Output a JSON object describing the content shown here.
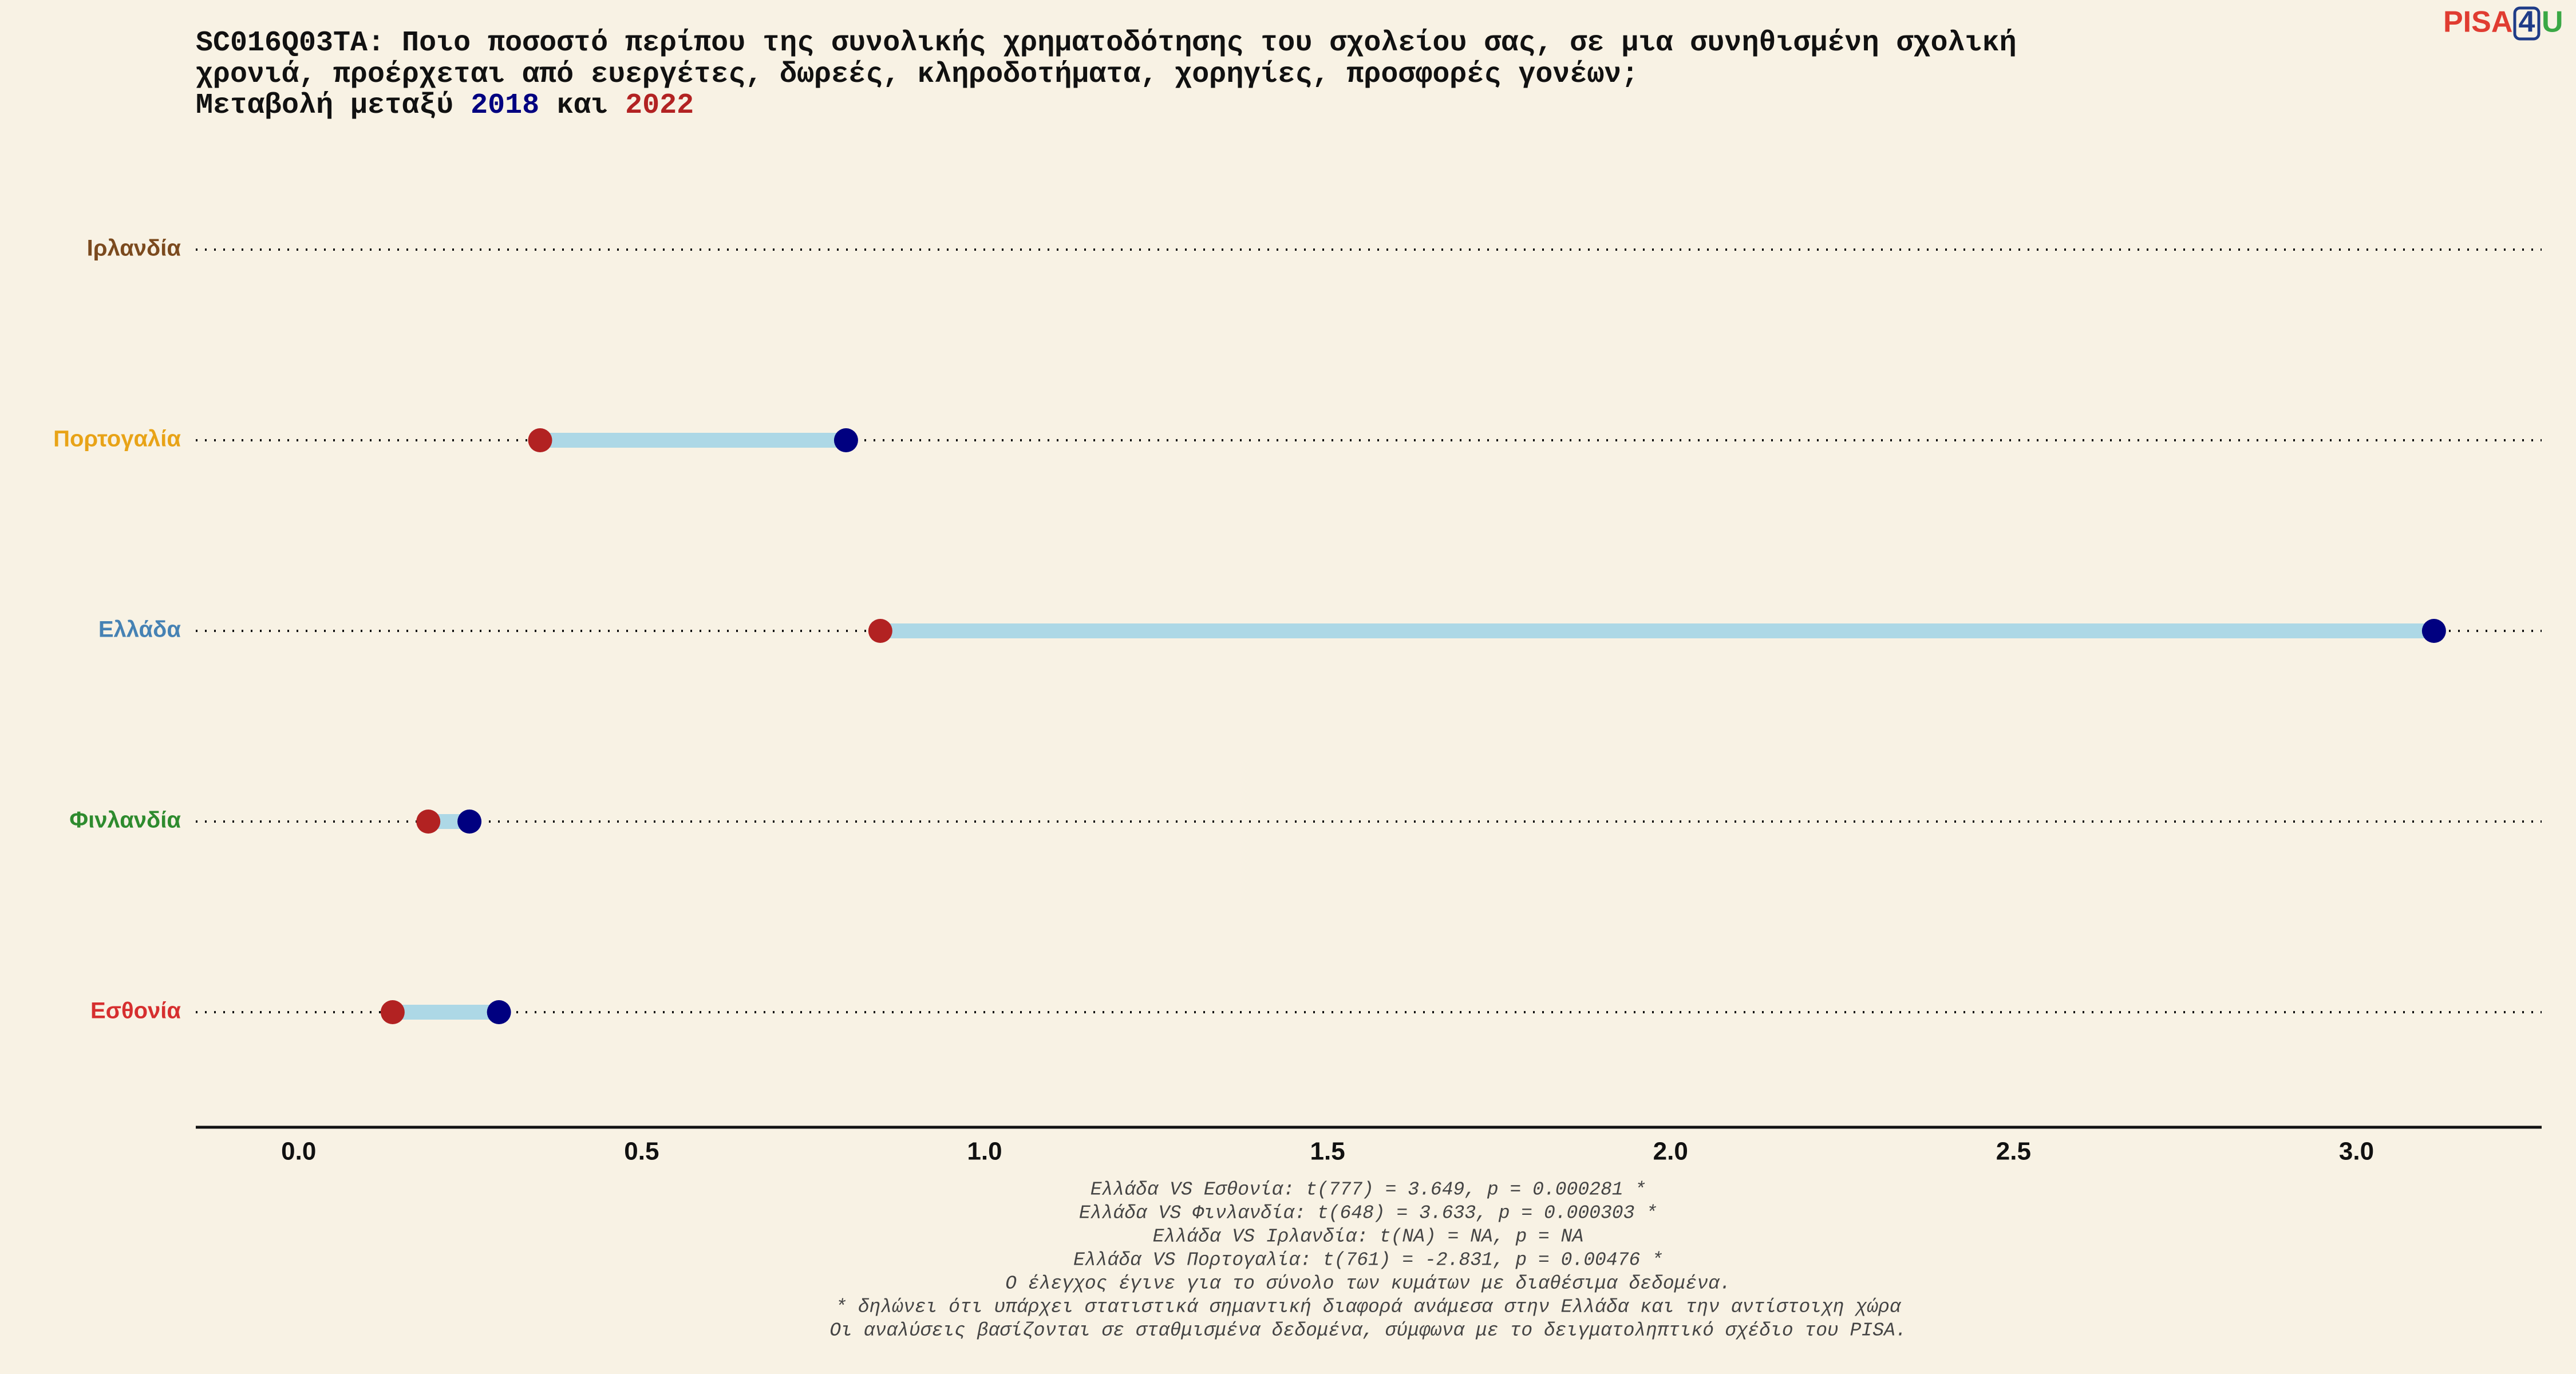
{
  "chart_data": {
    "type": "dumbbell",
    "title_lines": [
      "SC016Q03TA: Ποιο ποσοστό περίπου της συνολικής χρηματοδότησης του σχολείου σας, σε μια συνηθισμένη σχολική",
      "χρονιά, προέρχεται από ευεργέτες, δωρεές, κληροδοτήματα, χορηγίες, προσφορές γονέων;"
    ],
    "subtitle_parts": {
      "prefix": "Μεταβολή μεταξύ",
      "joiner": "και"
    },
    "categories": [
      "Ιρλανδία",
      "Πορτογαλία",
      "Ελλάδα",
      "Φινλανδία",
      "Εσθονία"
    ],
    "category_colors": [
      "#7b4a1e",
      "#e8a317",
      "#4682b4",
      "#2e8b2e",
      "#d62f2f"
    ],
    "series": [
      {
        "name": "2018",
        "color": "#000080",
        "values": [
          null,
          0.798,
          3.113,
          0.249,
          0.292
        ]
      },
      {
        "name": "2022",
        "color": "#b22222",
        "values": [
          null,
          0.352,
          0.848,
          0.189,
          0.137
        ]
      }
    ],
    "segment_color": "#add8e6",
    "xlim": [
      -0.15,
      3.27
    ],
    "xticks": [
      {
        "value": 0,
        "label": "0.0"
      },
      0.5,
      {
        "value": 1,
        "label": "1.0"
      },
      1.5,
      {
        "value": 2,
        "label": "2.0"
      },
      2.5,
      {
        "value": 3,
        "label": "3.0"
      }
    ],
    "notes": [
      "Ελλάδα VS Εσθονία: t(777) = 3.649, p = 0.000281 *",
      "Ελλάδα VS Φινλανδία: t(648) = 3.633, p = 0.000303 *",
      "Ελλάδα VS Ιρλανδία: t(NA) = NA, p = NA",
      "Ελλάδα VS Πορτογαλία: t(761) = -2.831, p = 0.00476 *",
      "Ο έλεγχος έγινε για το σύνολο των κυμάτων με διαθέσιμα δεδομένα.",
      "* δηλώνει ότι υπάρχει στατιστικά σημαντική διαφορά ανάμεσα στην Ελλάδα και την αντίστοιχη χώρα",
      "Οι αναλύσεις βασίζονται σε σταθμισμένα δεδομένα, σύμφωνα με το δειγματοληπτικό σχέδιο του PISA."
    ]
  },
  "logo": {
    "parts": [
      "PISA",
      "4",
      "U"
    ]
  }
}
